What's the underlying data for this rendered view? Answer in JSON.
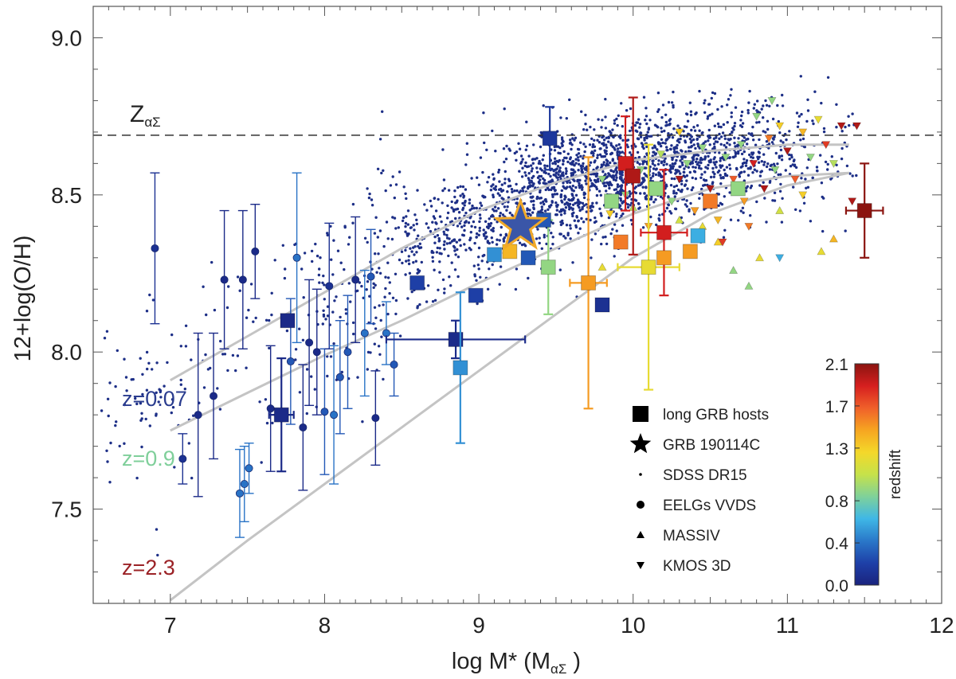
{
  "chart_data": {
    "type": "scatter",
    "title": "",
    "xlabel": "log M* (M",
    "xlabel_sub": "αΣ",
    "xlabel_close": " )",
    "ylabel": "12+log(O/H)",
    "xlim": [
      6.5,
      12
    ],
    "ylim": [
      7.2,
      9.1
    ],
    "x_ticks": [
      7,
      8,
      9,
      10,
      11,
      12
    ],
    "x_tick_labels": [
      "7",
      "8",
      "9",
      "10",
      "11",
      "12"
    ],
    "y_ticks": [
      7.5,
      8.0,
      8.5,
      9.0
    ],
    "y_tick_labels": [
      "7.5",
      "8.0",
      "8.5",
      "9.0"
    ],
    "solar_line": {
      "value": 8.69,
      "label_main": "Z",
      "label_sub": "αΣ"
    },
    "relations": [
      {
        "name": "z=0.07",
        "label": "z=0.07",
        "color": "#2b3d8f",
        "x": [
          7.0,
          7.5,
          8.0,
          8.5,
          9.0,
          9.5,
          10.0,
          10.5,
          11.0,
          11.4
        ],
        "y": [
          7.91,
          8.05,
          8.19,
          8.33,
          8.45,
          8.54,
          8.61,
          8.64,
          8.66,
          8.66
        ]
      },
      {
        "name": "z=0.9",
        "label": "z=0.9",
        "color": "#7fcf9a",
        "x": [
          7.0,
          7.5,
          8.0,
          8.5,
          9.0,
          9.5,
          10.0,
          10.5,
          11.0,
          11.4
        ],
        "y": [
          7.75,
          7.87,
          7.99,
          8.1,
          8.22,
          8.33,
          8.44,
          8.52,
          8.56,
          8.57
        ]
      },
      {
        "name": "z=2.3",
        "label": "z=2.3",
        "color": "#9b2226",
        "x": [
          7.0,
          7.5,
          8.0,
          8.5,
          9.0,
          9.5,
          10.0,
          10.5,
          11.0,
          11.4
        ],
        "y": [
          7.21,
          7.4,
          7.58,
          7.76,
          7.94,
          8.12,
          8.3,
          8.44,
          8.53,
          8.57
        ]
      }
    ],
    "series": [
      {
        "name": "long GRB hosts",
        "marker": "square",
        "points": [
          {
            "x": 7.76,
            "y": 8.1,
            "z": 0.05
          },
          {
            "x": 7.72,
            "y": 7.8,
            "z": 0.05,
            "xerr": 0.08,
            "yerr": 0.18
          },
          {
            "x": 8.85,
            "y": 8.04,
            "z": 0.06,
            "xerr": 0.45,
            "yerr": 0.06
          },
          {
            "x": 9.46,
            "y": 8.68,
            "z": 0.15,
            "yerr": 0.1
          },
          {
            "x": 8.98,
            "y": 8.18,
            "z": 0.2
          },
          {
            "x": 8.88,
            "y": 7.95,
            "z": 0.5,
            "yerr": 0.24
          },
          {
            "x": 8.6,
            "y": 8.22,
            "z": 0.2
          },
          {
            "x": 9.1,
            "y": 8.31,
            "z": 0.5
          },
          {
            "x": 9.2,
            "y": 8.32,
            "z": 1.4
          },
          {
            "x": 9.32,
            "y": 8.3,
            "z": 0.3
          },
          {
            "x": 9.45,
            "y": 8.27,
            "z": 0.9,
            "yerr": 0.15
          },
          {
            "x": 9.42,
            "y": 8.42,
            "z": 0.3
          },
          {
            "x": 9.71,
            "y": 8.22,
            "z": 1.5,
            "xerr": 0.12,
            "yerr": 0.4
          },
          {
            "x": 9.8,
            "y": 8.15,
            "z": 0.1
          },
          {
            "x": 9.86,
            "y": 8.48,
            "z": 0.9
          },
          {
            "x": 9.92,
            "y": 8.35,
            "z": 1.6
          },
          {
            "x": 9.95,
            "y": 8.6,
            "z": 1.9,
            "yerr": 0.15
          },
          {
            "x": 10.0,
            "y": 8.56,
            "z": 2.0,
            "yerr": 0.25
          },
          {
            "x": 10.1,
            "y": 8.27,
            "z": 1.2,
            "xerr": 0.2,
            "yerr": 0.39
          },
          {
            "x": 10.15,
            "y": 8.52,
            "z": 0.9
          },
          {
            "x": 10.2,
            "y": 8.38,
            "z": 1.9,
            "xerr": 0.15,
            "yerr": 0.2
          },
          {
            "x": 10.2,
            "y": 8.3,
            "z": 1.5
          },
          {
            "x": 10.37,
            "y": 8.32,
            "z": 1.5
          },
          {
            "x": 10.42,
            "y": 8.37,
            "z": 0.6
          },
          {
            "x": 10.5,
            "y": 8.48,
            "z": 1.6
          },
          {
            "x": 10.68,
            "y": 8.52,
            "z": 0.9
          },
          {
            "x": 11.5,
            "y": 8.45,
            "z": 2.1,
            "xerr": 0.12,
            "yerr": 0.15
          }
        ]
      },
      {
        "name": "GRB 190114C",
        "marker": "star",
        "points": [
          {
            "x": 9.27,
            "y": 8.4,
            "z": 0.42
          }
        ]
      },
      {
        "name": "SDSS DR15",
        "marker": "dot",
        "cloud": {
          "x_center": 9.9,
          "y_relation": "z=0.07",
          "count": 2600,
          "scatter": 0.09
        }
      },
      {
        "name": "EELGs VVDS",
        "marker": "circle",
        "points": [
          {
            "x": 6.9,
            "y": 8.33,
            "z": 0.1,
            "yerr": 0.24
          },
          {
            "x": 7.08,
            "y": 7.66,
            "z": 0.1,
            "yerr": 0.08
          },
          {
            "x": 7.18,
            "y": 7.8,
            "z": 0.05,
            "yerr": 0.26
          },
          {
            "x": 7.28,
            "y": 7.86,
            "z": 0.05,
            "yerr": 0.2
          },
          {
            "x": 7.35,
            "y": 8.23,
            "z": 0.05,
            "yerr": 0.22
          },
          {
            "x": 7.45,
            "y": 7.55,
            "z": 0.4,
            "yerr": 0.14
          },
          {
            "x": 7.48,
            "y": 7.58,
            "z": 0.4,
            "yerr": 0.12
          },
          {
            "x": 7.51,
            "y": 7.63,
            "z": 0.4,
            "yerr": 0.08
          },
          {
            "x": 7.47,
            "y": 8.23,
            "z": 0.05,
            "yerr": 0.22
          },
          {
            "x": 7.55,
            "y": 8.32,
            "z": 0.05,
            "yerr": 0.15
          },
          {
            "x": 7.65,
            "y": 7.82,
            "z": 0.05,
            "yerr": 0.2
          },
          {
            "x": 7.78,
            "y": 7.97,
            "z": 0.3,
            "yerr": 0.2
          },
          {
            "x": 7.82,
            "y": 8.3,
            "z": 0.4,
            "yerr": 0.27
          },
          {
            "x": 7.86,
            "y": 7.76,
            "z": 0.05,
            "yerr": 0.2
          },
          {
            "x": 7.9,
            "y": 8.03,
            "z": 0.05,
            "yerr": 0.2
          },
          {
            "x": 7.95,
            "y": 8.0,
            "z": 0.05,
            "yerr": 0.2
          },
          {
            "x": 8.0,
            "y": 7.81,
            "z": 0.3,
            "yerr": 0.2
          },
          {
            "x": 8.03,
            "y": 8.21,
            "z": 0.1,
            "yerr": 0.2
          },
          {
            "x": 8.06,
            "y": 7.8,
            "z": 0.4,
            "yerr": 0.22
          },
          {
            "x": 8.1,
            "y": 7.92,
            "z": 0.3,
            "yerr": 0.18
          },
          {
            "x": 8.15,
            "y": 8.0,
            "z": 0.3,
            "yerr": 0.18
          },
          {
            "x": 8.2,
            "y": 8.23,
            "z": 0.05,
            "yerr": 0.2
          },
          {
            "x": 8.26,
            "y": 8.06,
            "z": 0.4,
            "yerr": 0.2
          },
          {
            "x": 8.3,
            "y": 8.24,
            "z": 0.3,
            "yerr": 0.15
          },
          {
            "x": 8.33,
            "y": 7.79,
            "z": 0.05,
            "yerr": 0.15
          },
          {
            "x": 8.4,
            "y": 8.06,
            "z": 0.4,
            "yerr": 0.1
          },
          {
            "x": 8.45,
            "y": 7.96,
            "z": 0.3,
            "yerr": 0.1
          }
        ]
      },
      {
        "name": "MASSIV",
        "marker": "triangle-up",
        "points": [
          {
            "x": 9.8,
            "y": 8.27,
            "z": 1.2
          },
          {
            "x": 10.0,
            "y": 8.46,
            "z": 1.0
          },
          {
            "x": 10.3,
            "y": 8.42,
            "z": 1.1
          },
          {
            "x": 10.55,
            "y": 8.35,
            "z": 1.3
          },
          {
            "x": 10.65,
            "y": 8.26,
            "z": 0.9
          },
          {
            "x": 10.75,
            "y": 8.21,
            "z": 0.9
          },
          {
            "x": 10.82,
            "y": 8.3,
            "z": 1.2
          },
          {
            "x": 10.95,
            "y": 8.45,
            "z": 1.1
          },
          {
            "x": 11.22,
            "y": 8.32,
            "z": 1.2
          },
          {
            "x": 11.3,
            "y": 8.36,
            "z": 1.4
          },
          {
            "x": 10.45,
            "y": 8.4,
            "z": 1.2
          }
        ]
      },
      {
        "name": "KMOS 3D",
        "marker": "triangle-down",
        "points": [
          {
            "x": 9.8,
            "y": 8.55,
            "z": 0.9
          },
          {
            "x": 9.85,
            "y": 8.44,
            "z": 1.3
          },
          {
            "x": 9.95,
            "y": 8.5,
            "z": 0.9
          },
          {
            "x": 10.05,
            "y": 8.58,
            "z": 0.9
          },
          {
            "x": 10.1,
            "y": 8.4,
            "z": 1.5
          },
          {
            "x": 10.18,
            "y": 8.63,
            "z": 1.0
          },
          {
            "x": 10.25,
            "y": 8.48,
            "z": 0.9
          },
          {
            "x": 10.3,
            "y": 8.55,
            "z": 2.0
          },
          {
            "x": 10.35,
            "y": 8.6,
            "z": 0.9
          },
          {
            "x": 10.4,
            "y": 8.45,
            "z": 1.5
          },
          {
            "x": 10.45,
            "y": 8.65,
            "z": 0.9
          },
          {
            "x": 10.5,
            "y": 8.52,
            "z": 2.0
          },
          {
            "x": 10.55,
            "y": 8.42,
            "z": 1.4
          },
          {
            "x": 10.6,
            "y": 8.62,
            "z": 0.9
          },
          {
            "x": 10.65,
            "y": 8.55,
            "z": 1.7
          },
          {
            "x": 10.7,
            "y": 8.66,
            "z": 0.9
          },
          {
            "x": 10.72,
            "y": 8.48,
            "z": 1.5
          },
          {
            "x": 10.78,
            "y": 8.6,
            "z": 1.9
          },
          {
            "x": 10.8,
            "y": 8.75,
            "z": 0.9
          },
          {
            "x": 10.85,
            "y": 8.52,
            "z": 2.0
          },
          {
            "x": 10.88,
            "y": 8.68,
            "z": 1.6
          },
          {
            "x": 10.92,
            "y": 8.58,
            "z": 0.9
          },
          {
            "x": 10.95,
            "y": 8.72,
            "z": 1.3
          },
          {
            "x": 11.0,
            "y": 8.64,
            "z": 2.0
          },
          {
            "x": 11.05,
            "y": 8.55,
            "z": 1.7
          },
          {
            "x": 11.1,
            "y": 8.7,
            "z": 1.4
          },
          {
            "x": 11.15,
            "y": 8.62,
            "z": 0.9
          },
          {
            "x": 11.2,
            "y": 8.74,
            "z": 1.2
          },
          {
            "x": 11.25,
            "y": 8.66,
            "z": 1.8
          },
          {
            "x": 11.3,
            "y": 8.6,
            "z": 1.0
          },
          {
            "x": 11.35,
            "y": 8.72,
            "z": 2.0
          },
          {
            "x": 11.45,
            "y": 8.72,
            "z": 2.0
          },
          {
            "x": 11.42,
            "y": 8.48,
            "z": 2.0
          },
          {
            "x": 10.58,
            "y": 8.35,
            "z": 1.8
          },
          {
            "x": 10.95,
            "y": 8.3,
            "z": 0.6
          },
          {
            "x": 10.75,
            "y": 8.4,
            "z": 1.6
          },
          {
            "x": 11.1,
            "y": 8.5,
            "z": 1.3
          },
          {
            "x": 10.3,
            "y": 8.7,
            "z": 1.3
          },
          {
            "x": 10.9,
            "y": 8.8,
            "z": 0.9
          }
        ]
      }
    ],
    "legend": {
      "position": "lower-right",
      "entries": [
        "long GRB hosts",
        "GRB 190114C",
        "SDSS DR15",
        "EELGs VVDS",
        "MASSIV",
        "KMOS 3D"
      ]
    },
    "colorbar": {
      "label": "redshift",
      "range": [
        0.0,
        2.1
      ],
      "tick_values": [
        0.0,
        0.4,
        0.8,
        1.3,
        1.7,
        2.1
      ],
      "tick_labels": [
        "0.0",
        "0.4",
        "0.8",
        "1.3",
        "1.7",
        "2.1"
      ],
      "colors": [
        "#1a237e",
        "#1e40a8",
        "#2a78c9",
        "#3fb7e6",
        "#7fd19a",
        "#c6e24a",
        "#f4d82a",
        "#f6a521",
        "#f0602a",
        "#d61f1f",
        "#8b1410"
      ]
    }
  }
}
